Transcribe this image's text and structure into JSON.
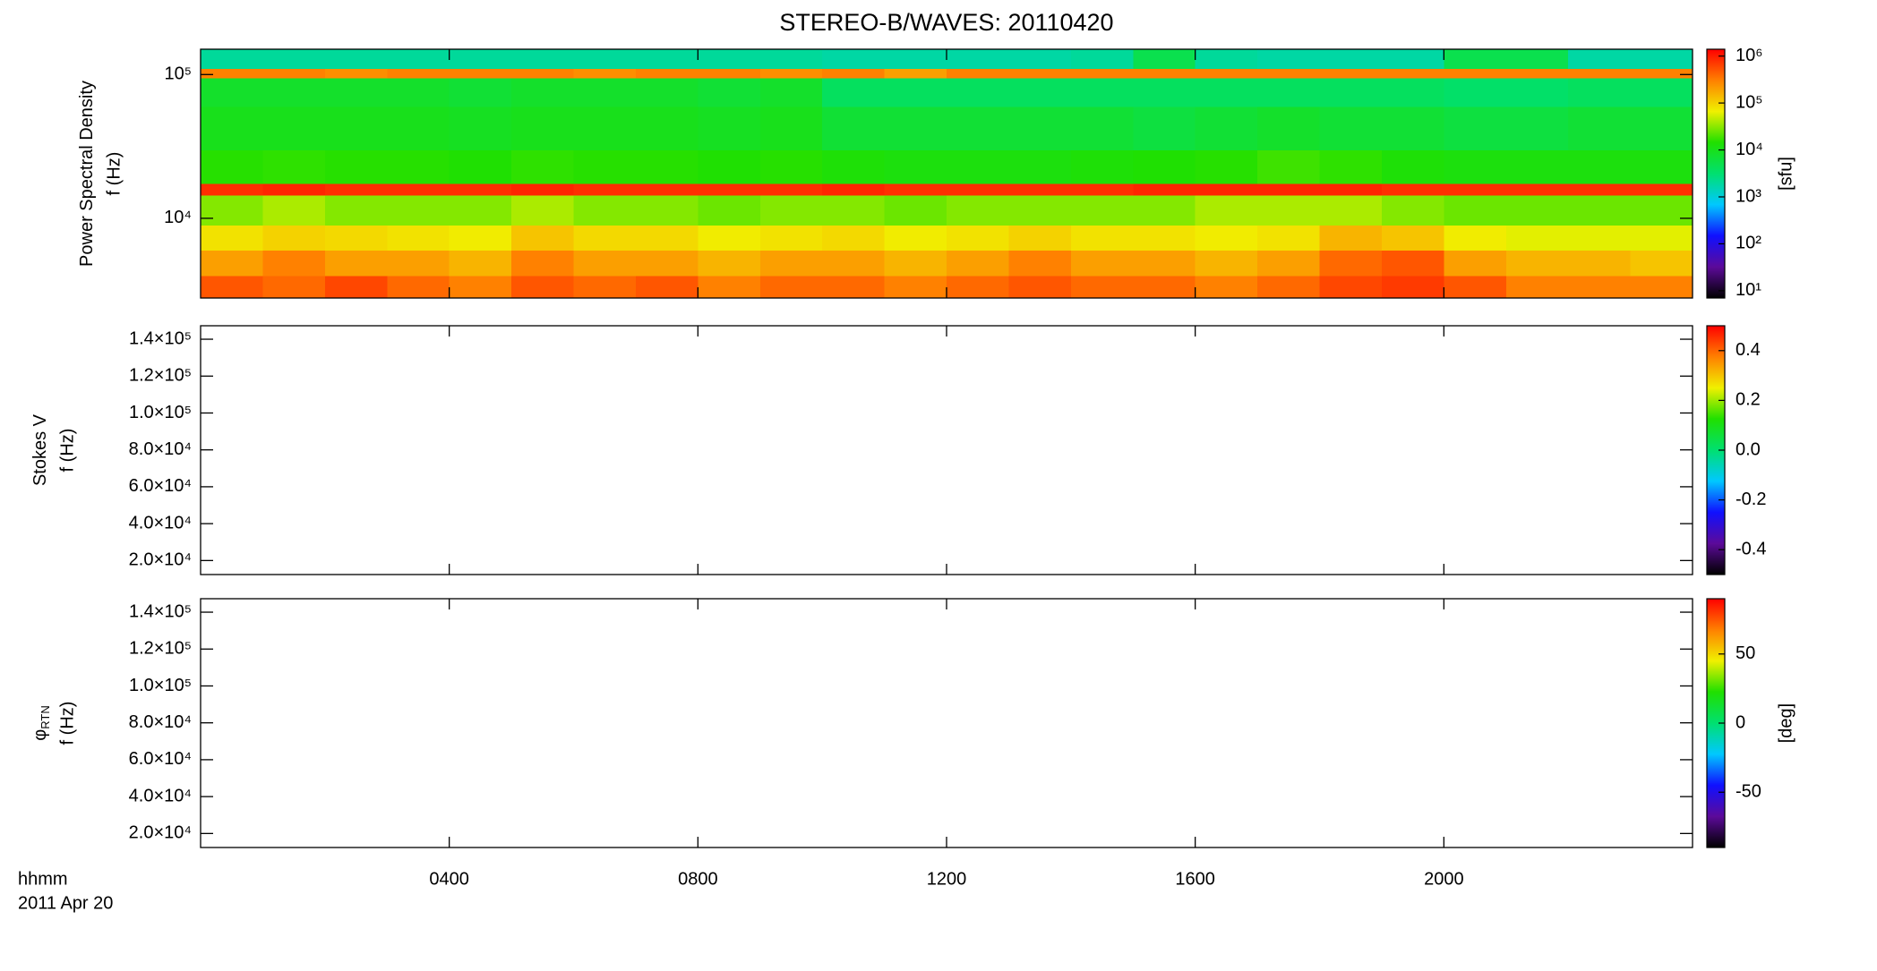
{
  "chart_data": {
    "type": "spectrogram",
    "title": "STEREO-B/WAVES: 20110420",
    "xlabel": "hhmm",
    "xsublabel": "2011 Apr 20",
    "xlim": [
      0,
      2400
    ],
    "xticks": [
      {
        "value": 400,
        "label": "0400"
      },
      {
        "value": 800,
        "label": "0800"
      },
      {
        "value": 1200,
        "label": "1200"
      },
      {
        "value": 1600,
        "label": "1600"
      },
      {
        "value": 2000,
        "label": "2000"
      }
    ],
    "x": [
      0,
      100,
      200,
      300,
      400,
      500,
      600,
      700,
      800,
      900,
      1000,
      1100,
      1200,
      1300,
      1400,
      1500,
      1600,
      1700,
      1800,
      1900,
      2000,
      2100,
      2200,
      2300,
      2400
    ],
    "colormap": [
      "#000000",
      "#5c0a9a",
      "#1010ff",
      "#00c8ff",
      "#00e070",
      "#20e000",
      "#f0f000",
      "#ff8000",
      "#ff0000"
    ],
    "panels": [
      {
        "ylabel": "Power Spectral Density",
        "ylabel2": "f (Hz)",
        "ylog": true,
        "ylim": [
          2790,
          150000
        ],
        "yticks": [
          {
            "value": 10000,
            "label": "10⁴"
          },
          {
            "value": 100000,
            "label": "10⁵"
          }
        ],
        "clog": true,
        "clim": [
          7,
          1400000
        ],
        "cticks": [
          {
            "value": 10,
            "label": "10¹"
          },
          {
            "value": 100,
            "label": "10²"
          },
          {
            "value": 1000,
            "label": "10³"
          },
          {
            "value": 10000,
            "label": "10⁴"
          },
          {
            "value": 100000,
            "label": "10⁵"
          },
          {
            "value": 1000000,
            "label": "10⁶"
          }
        ],
        "clabel": "[sfu]",
        "ybins": [
          2790,
          4000,
          6000,
          9000,
          14500,
          17500,
          30000,
          60000,
          95000,
          110000,
          150000
        ],
        "z": [
          [
            500000.0,
            400000.0,
            600000.0,
            400000.0,
            300000.0,
            500000.0,
            400000.0,
            500000.0,
            300000.0,
            400000.0,
            400000.0,
            300000.0,
            400000.0,
            500000.0,
            400000.0,
            400000.0,
            300000.0,
            400000.0,
            600000.0,
            700000.0,
            500000.0,
            300000.0,
            300000.0,
            300000.0
          ],
          [
            200000.0,
            300000.0,
            200000.0,
            200000.0,
            150000.0,
            300000.0,
            200000.0,
            200000.0,
            150000.0,
            200000.0,
            200000.0,
            150000.0,
            200000.0,
            300000.0,
            200000.0,
            200000.0,
            150000.0,
            200000.0,
            400000.0,
            500000.0,
            200000.0,
            150000.0,
            150000.0,
            120000.0
          ],
          [
            80000.0,
            100000.0,
            90000.0,
            80000.0,
            70000.0,
            120000.0,
            90000.0,
            90000.0,
            70000.0,
            80000.0,
            90000.0,
            70000.0,
            80000.0,
            100000.0,
            80000.0,
            80000.0,
            70000.0,
            80000.0,
            150000.0,
            120000.0,
            70000.0,
            60000.0,
            60000.0,
            60000.0
          ],
          [
            30000.0,
            40000.0,
            30000.0,
            30000.0,
            30000.0,
            40000.0,
            30000.0,
            30000.0,
            25000.0,
            30000.0,
            30000.0,
            25000.0,
            30000.0,
            30000.0,
            30000.0,
            30000.0,
            40000.0,
            40000.0,
            40000.0,
            30000.0,
            25000.0,
            25000.0,
            25000.0,
            25000.0
          ],
          [
            800000.0,
            900000.0,
            800000.0,
            800000.0,
            800000.0,
            900000.0,
            800000.0,
            800000.0,
            800000.0,
            800000.0,
            900000.0,
            800000.0,
            800000.0,
            800000.0,
            800000.0,
            900000.0,
            900000.0,
            900000.0,
            900000.0,
            800000.0,
            800000.0,
            800000.0,
            800000.0,
            800000.0
          ],
          [
            15000.0,
            16000.0,
            15000.0,
            15000.0,
            14000.0,
            16000.0,
            15000.0,
            15000.0,
            14000.0,
            15000.0,
            13000.0,
            12000.0,
            12000.0,
            12000.0,
            13000.0,
            14000.0,
            15000.0,
            18000.0,
            16000.0,
            13000.0,
            12000.0,
            12000.0,
            12000.0,
            12000.0
          ],
          [
            10000.0,
            10000.0,
            10000.0,
            10000.0,
            9000.0,
            10000.0,
            10000.0,
            10000.0,
            9000.0,
            10000.0,
            7000.0,
            7000.0,
            7000.0,
            7000.0,
            7000.0,
            6000.0,
            7000.0,
            8000.0,
            7000.0,
            7000.0,
            6000.0,
            6000.0,
            7000.0,
            7000.0
          ],
          [
            8000.0,
            8000.0,
            8000.0,
            8000.0,
            7000.0,
            8000.0,
            8000.0,
            8000.0,
            7000.0,
            8000.0,
            4000.0,
            4000.0,
            4000.0,
            4000.0,
            4000.0,
            4000.0,
            4000.0,
            4000.0,
            4000.0,
            4000.0,
            3500.0,
            3500.0,
            4000.0,
            4000.0
          ],
          [
            300000.0,
            300000.0,
            250000.0,
            300000.0,
            300000.0,
            300000.0,
            250000.0,
            300000.0,
            300000.0,
            250000.0,
            300000.0,
            200000.0,
            300000.0,
            300000.0,
            300000.0,
            300000.0,
            300000.0,
            300000.0,
            300000.0,
            300000.0,
            300000.0,
            300000.0,
            300000.0,
            300000.0
          ],
          [
            2000.0,
            2000.0,
            2000.0,
            2000.0,
            2000.0,
            2000.0,
            2000.0,
            2000.0,
            2000.0,
            2000.0,
            1800.0,
            1800.0,
            1800.0,
            1800.0,
            2000.0,
            5000.0,
            2000.0,
            1800.0,
            1800.0,
            1800.0,
            5000.0,
            5000.0,
            1800.0,
            1800.0
          ]
        ]
      },
      {
        "ylabel": "Stokes V",
        "ylabel2": "f (Hz)",
        "ylog": false,
        "ylim": [
          12400,
          147300
        ],
        "yticks": [
          {
            "value": 20000,
            "label": "2.0×10⁴"
          },
          {
            "value": 40000,
            "label": "4.0×10⁴"
          },
          {
            "value": 60000,
            "label": "6.0×10⁴"
          },
          {
            "value": 80000,
            "label": "8.0×10⁴"
          },
          {
            "value": 100000,
            "label": "1.0×10⁵"
          },
          {
            "value": 120000,
            "label": "1.2×10⁵"
          },
          {
            "value": 140000,
            "label": "1.4×10⁵"
          }
        ],
        "clog": false,
        "clim": [
          -0.5,
          0.5
        ],
        "cticks": [
          -0.4,
          -0.2,
          {
            "value": 0,
            "label": "0.0"
          },
          0.2,
          0.4
        ]
      },
      {
        "ylabel": "φ",
        "ylabel_sub": "RTN",
        "ylabel2": "f (Hz)",
        "ylog": false,
        "ylim": [
          12400,
          147300
        ],
        "yticks": [
          {
            "value": 20000,
            "label": "2.0×10⁴"
          },
          {
            "value": 40000,
            "label": "4.0×10⁴"
          },
          {
            "value": 60000,
            "label": "6.0×10⁴"
          },
          {
            "value": 80000,
            "label": "8.0×10⁴"
          },
          {
            "value": 100000,
            "label": "1.0×10⁵"
          },
          {
            "value": 120000,
            "label": "1.2×10⁵"
          },
          {
            "value": 140000,
            "label": "1.4×10⁵"
          }
        ],
        "clog": false,
        "clim": [
          -90,
          90
        ],
        "cticks": [
          -50,
          0,
          50
        ],
        "clabel": "[deg]"
      }
    ]
  }
}
